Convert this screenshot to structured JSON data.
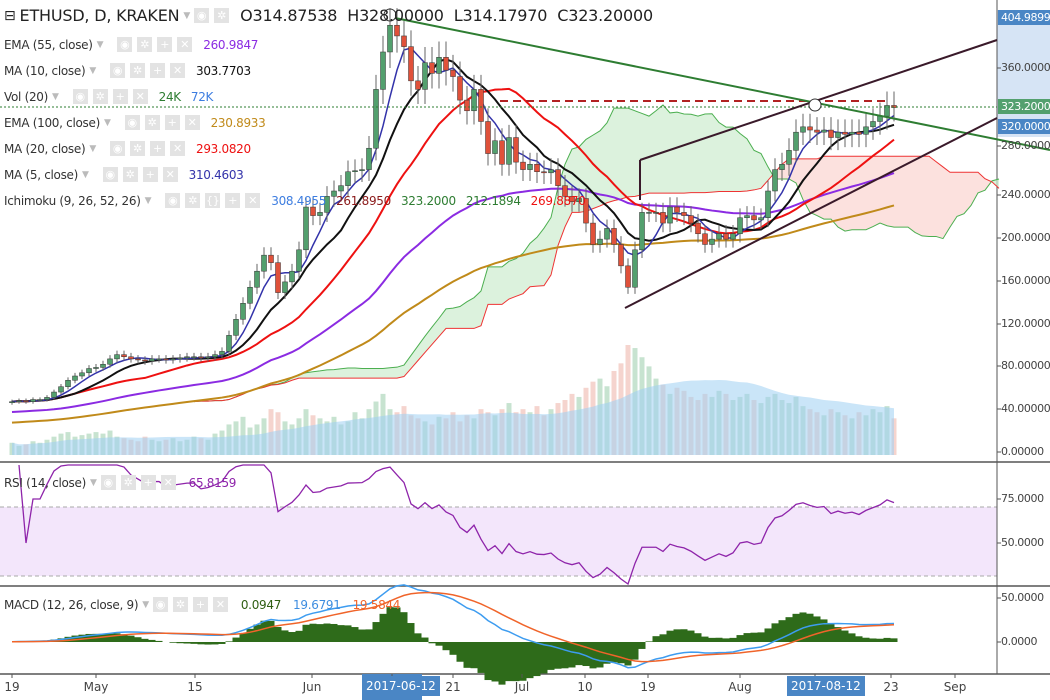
{
  "header": {
    "symbol": "ETHUSD, D, KRAKEN",
    "open": "O314.87538",
    "high": "H328.00000",
    "low": "L314.17970",
    "close": "C323.20000"
  },
  "indicators": [
    {
      "label": "EMA (55, close)",
      "values": [
        "260.9847"
      ],
      "colors": [
        "#8b2be2"
      ]
    },
    {
      "label": "MA (10, close)",
      "values": [
        "303.7703"
      ],
      "colors": [
        "#111111"
      ]
    },
    {
      "label": "Vol (20)",
      "values": [
        "24K",
        "72K"
      ],
      "colors": [
        "#2e7d32",
        "#3d7de0"
      ]
    },
    {
      "label": "EMA (100, close)",
      "values": [
        "230.8933"
      ],
      "colors": [
        "#c08a1a"
      ]
    },
    {
      "label": "MA (20, close)",
      "values": [
        "293.0820"
      ],
      "colors": [
        "#ee1111"
      ]
    },
    {
      "label": "MA (5, close)",
      "values": [
        "310.4603"
      ],
      "colors": [
        "#3333aa"
      ]
    },
    {
      "label": "Ichimoku (9, 26, 52, 26)",
      "values": [
        "308.4955",
        "261.8950",
        "323.2000",
        "212.1894",
        "269.8870"
      ],
      "colors": [
        "#3d7de0",
        "#8b1a1a",
        "#2e7d32",
        "#2e7d32",
        "#ee1111"
      ]
    }
  ],
  "rsi": {
    "label": "RSI (14, close)",
    "value": "65.8159",
    "color": "#8e24aa"
  },
  "macd": {
    "label": "MACD (12, 26, close, 9)",
    "values": [
      "0.0947",
      "19.6791",
      "19.5844"
    ],
    "colors": [
      "#2e5e12",
      "#3d8de0",
      "#f0642a"
    ]
  },
  "price_axis": {
    "labels": [
      "360.00000",
      "280.00000",
      "240.00000",
      "200.00000",
      "160.00000",
      "120.00000",
      "80.00000",
      "40.00000",
      "0.00000"
    ],
    "high_badge": "404.98998",
    "last_badge": "323.20000",
    "cursor_badge": "320.00000"
  },
  "rsi_axis": [
    "75.0000",
    "50.0000"
  ],
  "macd_axis": [
    "50.0000",
    "0.0000"
  ],
  "time_axis": {
    "labels": [
      "19",
      "May",
      "15",
      "Jun",
      "21",
      "Jul",
      "10",
      "19",
      "Aug",
      "23",
      "Sep"
    ],
    "highlight": [
      "2017-06-12",
      "2017-08-12"
    ]
  },
  "colors": {
    "up": "#53a06e",
    "down": "#e0513a",
    "accent": "#4a86c5",
    "last": "#53a06e"
  },
  "chart_data": {
    "type": "candlestick",
    "start": "2017-04-19",
    "end": "2017-08-23",
    "interval": "1D",
    "ylim": [
      0,
      405
    ],
    "closes": [
      48,
      49,
      48,
      50,
      50,
      52,
      57,
      62,
      68,
      72,
      75,
      79,
      80,
      83,
      88,
      92,
      90,
      88,
      87,
      86,
      88,
      88,
      87,
      88,
      89,
      90,
      90,
      89,
      90,
      92,
      95,
      110,
      125,
      140,
      155,
      170,
      185,
      178,
      150,
      160,
      170,
      190,
      230,
      222,
      225,
      240,
      245,
      250,
      263,
      264,
      265,
      285,
      340,
      375,
      400,
      390,
      380,
      348,
      340,
      365,
      355,
      370,
      358,
      352,
      330,
      320,
      340,
      310,
      280,
      292,
      270,
      295,
      272,
      265,
      270,
      263,
      262,
      265,
      250,
      240,
      235,
      238,
      215,
      195,
      200,
      210,
      195,
      175,
      155,
      190,
      225,
      225,
      225,
      215,
      230,
      225,
      222,
      215,
      205,
      195,
      200,
      205,
      200,
      205,
      220,
      222,
      218,
      220,
      245,
      265,
      270,
      283,
      300,
      305,
      302,
      300,
      302,
      295,
      300,
      298,
      300,
      298,
      305,
      310,
      315,
      325,
      323
    ],
    "volumes_k": [
      8,
      6,
      7,
      9,
      8,
      10,
      12,
      14,
      15,
      12,
      13,
      14,
      15,
      14,
      16,
      12,
      11,
      10,
      9,
      12,
      10,
      9,
      10,
      11,
      9,
      10,
      12,
      11,
      10,
      14,
      16,
      20,
      22,
      25,
      18,
      20,
      24,
      30,
      28,
      22,
      20,
      24,
      30,
      26,
      24,
      22,
      25,
      20,
      22,
      28,
      24,
      30,
      35,
      40,
      30,
      28,
      32,
      26,
      24,
      22,
      20,
      25,
      24,
      28,
      22,
      26,
      24,
      30,
      28,
      26,
      30,
      34,
      28,
      30,
      28,
      32,
      26,
      30,
      34,
      36,
      40,
      38,
      44,
      48,
      50,
      45,
      55,
      60,
      72,
      70,
      64,
      58,
      50,
      46,
      40,
      44,
      42,
      38,
      36,
      40,
      38,
      42,
      40,
      36,
      38,
      40,
      36,
      34,
      38,
      40,
      36,
      34,
      38,
      32,
      30,
      28,
      26,
      30,
      28,
      26,
      24,
      28,
      26,
      30,
      28,
      32,
      24
    ]
  }
}
